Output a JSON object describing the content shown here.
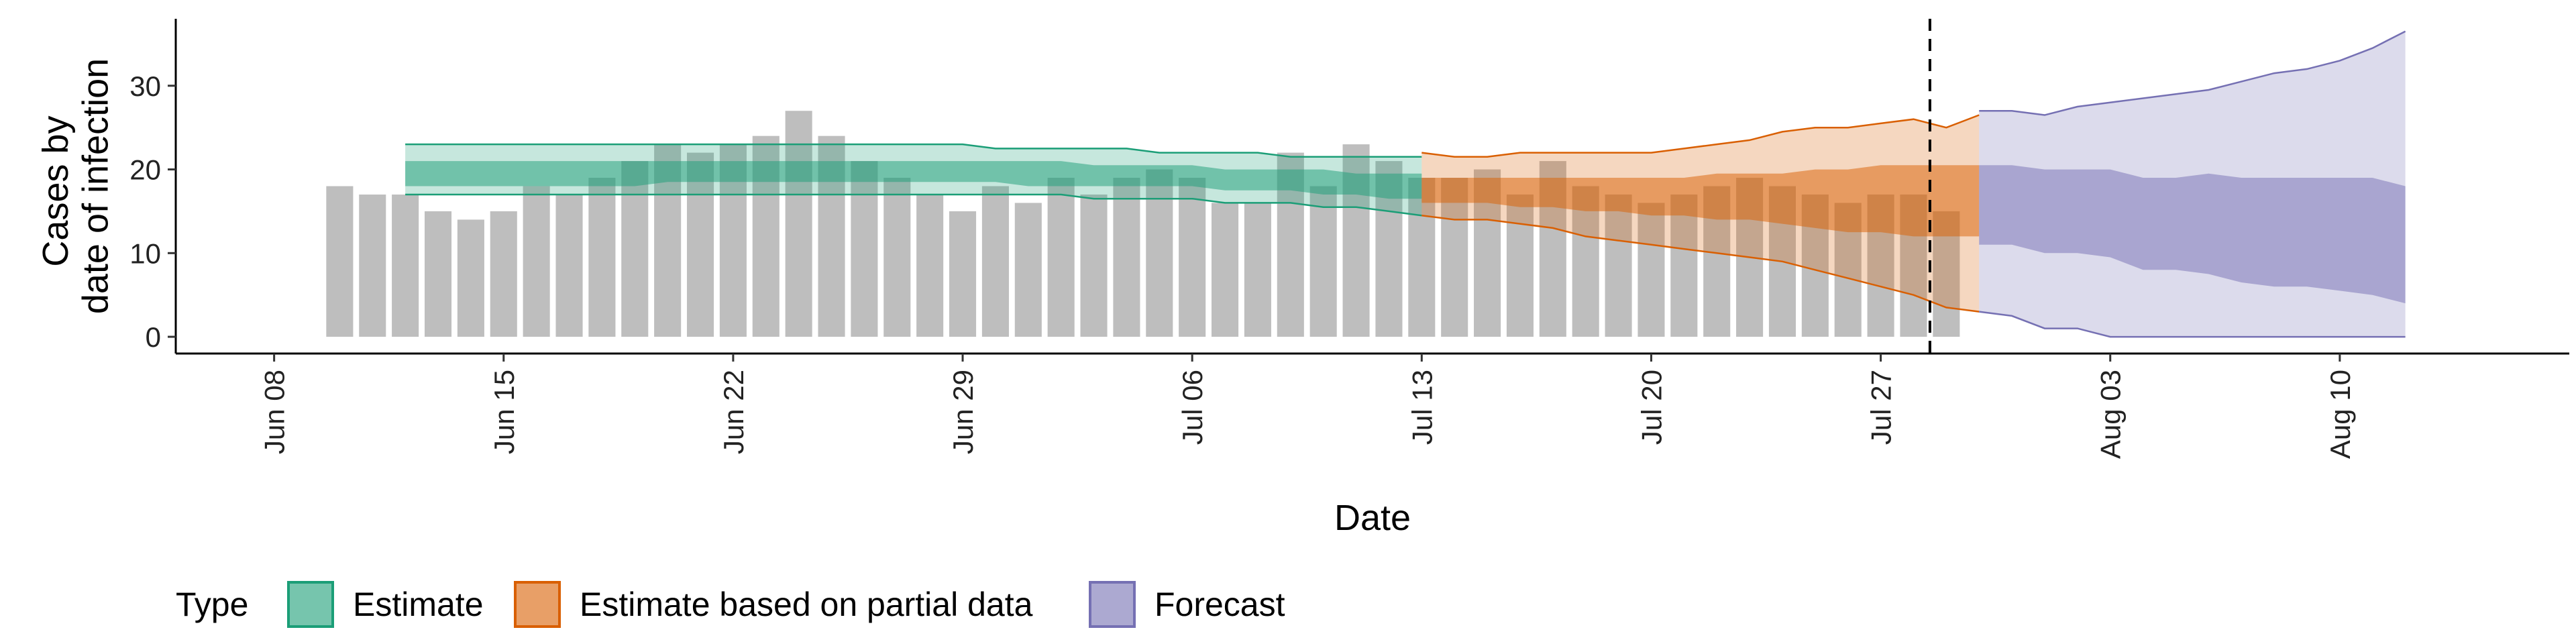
{
  "chart_data": {
    "type": "bar",
    "xlabel": "Date",
    "ylabel_lines": [
      "Cases by",
      "date of infection"
    ],
    "ylim": [
      -2,
      38
    ],
    "y_ticks": [
      0,
      10,
      20,
      30
    ],
    "x_domain": [
      "2020-06-05",
      "2020-08-17"
    ],
    "x_ticks": [
      {
        "date": "2020-06-08",
        "label": "Jun 08"
      },
      {
        "date": "2020-06-15",
        "label": "Jun 15"
      },
      {
        "date": "2020-06-22",
        "label": "Jun 22"
      },
      {
        "date": "2020-06-29",
        "label": "Jun 29"
      },
      {
        "date": "2020-07-06",
        "label": "Jul 06"
      },
      {
        "date": "2020-07-13",
        "label": "Jul 13"
      },
      {
        "date": "2020-07-20",
        "label": "Jul 20"
      },
      {
        "date": "2020-07-27",
        "label": "Jul 27"
      },
      {
        "date": "2020-08-03",
        "label": "Aug 03"
      },
      {
        "date": "2020-08-10",
        "label": "Aug 10"
      }
    ],
    "forecast_divider_date": "2020-07-29",
    "grid": false,
    "bar_color": "#bebebe",
    "bars": {
      "start_date": "2020-06-10",
      "values": [
        18,
        17,
        17,
        15,
        14,
        15,
        18,
        17,
        19,
        21,
        23,
        22,
        23,
        24,
        27,
        24,
        21,
        19,
        17,
        15,
        18,
        16,
        19,
        17,
        19,
        20,
        19,
        16,
        16,
        22,
        18,
        23,
        21,
        19,
        19,
        20,
        17,
        21,
        18,
        17,
        16,
        17,
        18,
        19,
        18,
        17,
        16,
        17,
        17,
        15
      ]
    },
    "series": [
      {
        "name": "Estimate",
        "fill": "#1b9e77",
        "line": "#1b9e77",
        "start_date": "2020-06-12",
        "lower90": [
          17,
          17,
          17,
          17,
          17,
          17,
          17,
          17,
          17,
          17,
          17,
          17,
          17,
          17,
          17,
          17,
          17,
          17,
          17,
          17,
          17,
          16.5,
          16.5,
          16.5,
          16.5,
          16,
          16,
          16,
          15.5,
          15.5,
          15,
          14.5
        ],
        "upper90": [
          23,
          23,
          23,
          23,
          23,
          23,
          23,
          23,
          23,
          23,
          23,
          23,
          23,
          23,
          23,
          23,
          23,
          23,
          22.5,
          22.5,
          22.5,
          22.5,
          22.5,
          22,
          22,
          22,
          22,
          21.5,
          21.5,
          21.5,
          21.5,
          21.5
        ],
        "lower50": [
          18,
          18,
          18,
          18,
          18,
          18,
          18,
          18,
          18.5,
          18.5,
          18.5,
          18.5,
          18.5,
          18.5,
          18.5,
          18.5,
          18.5,
          18.5,
          18.5,
          18,
          18,
          18,
          18,
          18,
          18,
          17.5,
          17.5,
          17.5,
          17,
          17,
          16.5,
          16.5
        ],
        "upper50": [
          21,
          21,
          21,
          21,
          21,
          21,
          21,
          21,
          21,
          21,
          21,
          21,
          21,
          21,
          21,
          21,
          21,
          21,
          21,
          21,
          21,
          20.5,
          20.5,
          20.5,
          20.5,
          20,
          20,
          20,
          20,
          19.5,
          19.5,
          19.5
        ]
      },
      {
        "name": "Estimate based on partial data",
        "fill": "#d95f02",
        "line": "#d95f02",
        "start_date": "2020-07-13",
        "lower90": [
          14.5,
          14,
          14,
          13.5,
          13,
          12,
          11.5,
          11,
          10.5,
          10,
          9.5,
          9,
          8,
          7,
          6,
          5,
          3.5,
          3
        ],
        "upper90": [
          22,
          21.5,
          21.5,
          22,
          22,
          22,
          22,
          22,
          22.5,
          23,
          23.5,
          24.5,
          25,
          25,
          25.5,
          26,
          25,
          26.5
        ],
        "lower50": [
          16,
          16,
          16,
          15.5,
          15.5,
          15,
          15,
          14.5,
          14.5,
          14,
          14,
          13.5,
          13,
          12.5,
          12.5,
          12,
          12,
          12
        ],
        "upper50": [
          19,
          19,
          19,
          19,
          19,
          19,
          19,
          19,
          19,
          19.5,
          19.5,
          19.5,
          20,
          20,
          20.5,
          20.5,
          20.5,
          20.5
        ]
      },
      {
        "name": "Forecast",
        "fill": "#7570b3",
        "line": "#7570b3",
        "start_date": "2020-07-30",
        "lower90": [
          3,
          2.5,
          1,
          1,
          0,
          0,
          0,
          0,
          0,
          0,
          0,
          0,
          0,
          0
        ],
        "upper90": [
          27,
          27,
          26.5,
          27.5,
          28,
          28.5,
          29,
          29.5,
          30.5,
          31.5,
          32,
          33,
          34.5,
          36.5
        ],
        "lower50": [
          11,
          11,
          10,
          10,
          9.5,
          8,
          8,
          7.5,
          6.5,
          6,
          6,
          5.5,
          5,
          4
        ],
        "upper50": [
          20.5,
          20.5,
          20,
          20,
          20,
          19,
          19,
          19.5,
          19,
          19,
          19,
          19,
          19,
          18
        ]
      }
    ],
    "legend": {
      "title": "Type",
      "position": "bottom",
      "items": [
        "Estimate",
        "Estimate based on partial data",
        "Forecast"
      ]
    }
  }
}
